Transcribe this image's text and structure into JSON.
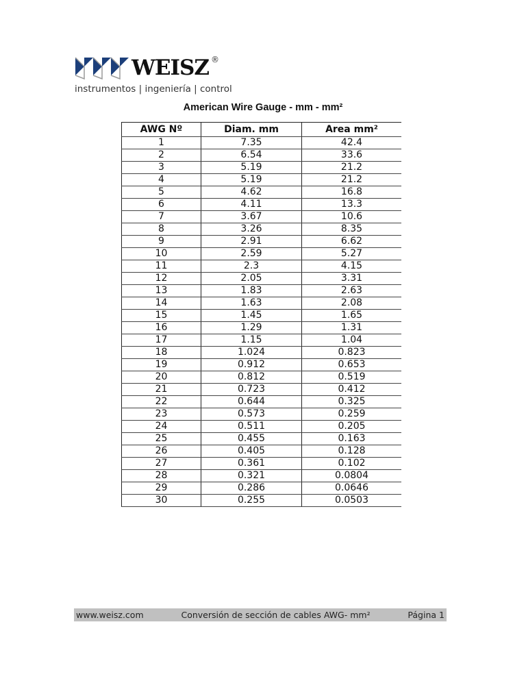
{
  "header": {
    "brand": "WEISZ",
    "registered": "®",
    "tagline": "instrumentos | ingeniería | control",
    "logo_colors": [
      "#1c3f7a",
      "#9a9a9a"
    ]
  },
  "title": "American Wire Gauge  - mm - mm²",
  "table": {
    "headers": [
      "AWG Nº",
      "Diam. mm",
      "Area mm²"
    ],
    "rows": [
      [
        "1",
        "7.35",
        "42.4"
      ],
      [
        "2",
        "6.54",
        "33.6"
      ],
      [
        "3",
        "5.19",
        "21.2"
      ],
      [
        "4",
        "5.19",
        "21.2"
      ],
      [
        "5",
        "4.62",
        "16.8"
      ],
      [
        "6",
        "4.11",
        "13.3"
      ],
      [
        "7",
        "3.67",
        "10.6"
      ],
      [
        "8",
        "3.26",
        "8.35"
      ],
      [
        "9",
        "2.91",
        "6.62"
      ],
      [
        "10",
        "2.59",
        "5.27"
      ],
      [
        "11",
        "2.3",
        "4.15"
      ],
      [
        "12",
        "2.05",
        "3.31"
      ],
      [
        "13",
        "1.83",
        "2.63"
      ],
      [
        "14",
        "1.63",
        "2.08"
      ],
      [
        "15",
        "1.45",
        "1.65"
      ],
      [
        "16",
        "1.29",
        "1.31"
      ],
      [
        "17",
        "1.15",
        "1.04"
      ],
      [
        "18",
        "1.024",
        "0.823"
      ],
      [
        "19",
        "0.912",
        "0.653"
      ],
      [
        "20",
        "0.812",
        "0.519"
      ],
      [
        "21",
        "0.723",
        "0.412"
      ],
      [
        "22",
        "0.644",
        "0.325"
      ],
      [
        "23",
        "0.573",
        "0.259"
      ],
      [
        "24",
        "0.511",
        "0.205"
      ],
      [
        "25",
        "0.455",
        "0.163"
      ],
      [
        "26",
        "0.405",
        "0.128"
      ],
      [
        "27",
        "0.361",
        "0.102"
      ],
      [
        "28",
        "0.321",
        "0.0804"
      ],
      [
        "29",
        "0.286",
        "0.0646"
      ],
      [
        "30",
        "0.255",
        "0.0503"
      ]
    ]
  },
  "footer": {
    "website": "www.weisz.com",
    "description": "Conversión de sección de cables AWG- mm²",
    "page": "Página 1"
  }
}
